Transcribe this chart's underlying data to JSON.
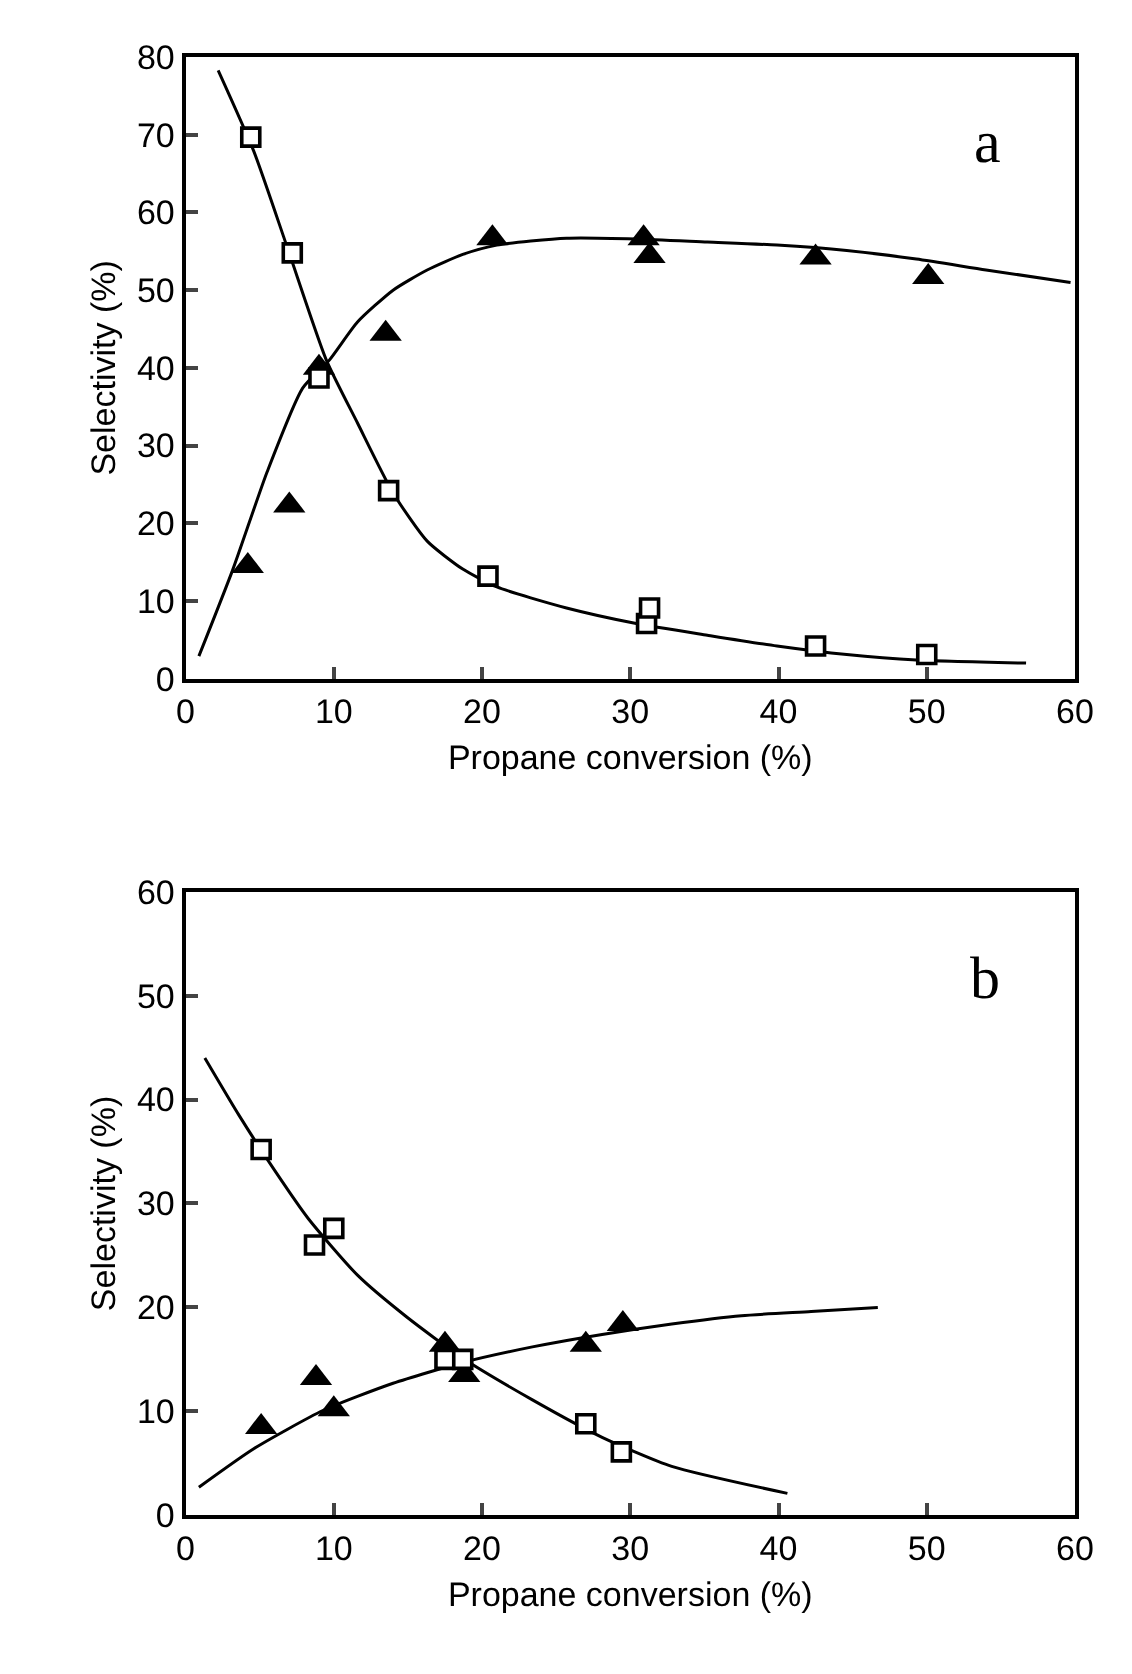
{
  "chart_data": [
    {
      "type": "scatter",
      "xlabel": "Propane conversion (%)",
      "ylabel": "Selectivity (%)",
      "annotations": [
        "a"
      ],
      "xlim": [
        0,
        60
      ],
      "xticks": [
        0,
        10,
        20,
        30,
        40,
        50,
        60
      ],
      "ylim": [
        0,
        80
      ],
      "yticks": [
        0,
        10,
        20,
        30,
        40,
        50,
        60,
        70,
        80
      ],
      "series": [
        {
          "type": "line",
          "marker": "none",
          "color": "#000000",
          "x": [
            2.2,
            4.6,
            6.9,
            9.5,
            11.6,
            14.0,
            16.3,
            18.7,
            21.0,
            25.7,
            30.4,
            35.2,
            39.9,
            44.6,
            49.3,
            56.7
          ],
          "values": [
            78.3,
            67.9,
            55.3,
            41.0,
            32.9,
            23.9,
            17.7,
            14.1,
            11.8,
            9.1,
            7.1,
            5.6,
            4.2,
            3.1,
            2.4,
            2.0
          ]
        },
        {
          "type": "line",
          "marker": "none",
          "color": "#000000",
          "x": [
            0.9,
            3.2,
            5.5,
            7.9,
            9.7,
            11.6,
            14.0,
            16.3,
            18.7,
            21.0,
            25.7,
            30.4,
            35.2,
            39.9,
            44.6,
            49.3,
            54.0,
            59.7
          ],
          "values": [
            2.9,
            14.1,
            26.6,
            37.4,
            41.0,
            45.9,
            50.0,
            52.6,
            54.6,
            55.8,
            56.7,
            56.6,
            56.2,
            55.8,
            55.1,
            54.0,
            52.6,
            51.0
          ]
        },
        {
          "marker": "triangle",
          "color": "#000000",
          "x": [
            4.2,
            7.0,
            9.0,
            13.5,
            20.7,
            30.9,
            31.3,
            42.5,
            50.1
          ],
          "values": [
            14.5,
            22.3,
            40.0,
            44.4,
            56.7,
            56.7,
            54.4,
            54.2,
            51.7
          ]
        },
        {
          "marker": "square",
          "color": "#ffffff",
          "x": [
            4.4,
            7.2,
            9.0,
            13.7,
            20.4,
            31.1,
            31.3,
            42.5,
            50.0
          ],
          "values": [
            69.7,
            54.8,
            38.7,
            24.2,
            13.2,
            7.1,
            9.1,
            4.2,
            3.1
          ]
        }
      ]
    },
    {
      "type": "scatter",
      "xlabel": "Propane conversion (%)",
      "ylabel": "Selectivity (%)",
      "annotations": [
        "b"
      ],
      "xlim": [
        0,
        60
      ],
      "xticks": [
        0,
        10,
        20,
        30,
        40,
        50,
        60
      ],
      "ylim": [
        0,
        60
      ],
      "yticks": [
        0,
        10,
        20,
        30,
        40,
        50,
        60
      ],
      "series": [
        {
          "type": "line",
          "marker": "none",
          "color": "#000000",
          "x": [
            1.3,
            3.6,
            6.0,
            8.3,
            11.6,
            14.9,
            18.7,
            23.4,
            28.1,
            32.8,
            40.6
          ],
          "values": [
            44.0,
            38.5,
            33.2,
            28.5,
            23.1,
            19.1,
            15.1,
            11.1,
            7.5,
            4.7,
            2.1
          ]
        },
        {
          "type": "line",
          "marker": "none",
          "color": "#000000",
          "x": [
            0.9,
            4.6,
            9.3,
            14.0,
            18.7,
            23.4,
            28.1,
            32.8,
            37.5,
            42.2,
            46.7
          ],
          "values": [
            2.7,
            6.4,
            10.1,
            12.7,
            14.7,
            16.2,
            17.4,
            18.4,
            19.2,
            19.6,
            20.0
          ]
        },
        {
          "marker": "triangle",
          "color": "#000000",
          "x": [
            5.1,
            8.8,
            10.0,
            17.5,
            18.8,
            27.0,
            29.5
          ],
          "values": [
            8.5,
            13.2,
            10.2,
            16.4,
            13.5,
            16.4,
            18.4
          ]
        },
        {
          "marker": "square",
          "color": "#ffffff",
          "x": [
            5.1,
            8.7,
            10.0,
            17.5,
            18.7,
            27.0,
            29.4
          ],
          "values": [
            35.2,
            26.0,
            27.6,
            15.0,
            15.0,
            8.8,
            6.1
          ]
        }
      ]
    }
  ]
}
